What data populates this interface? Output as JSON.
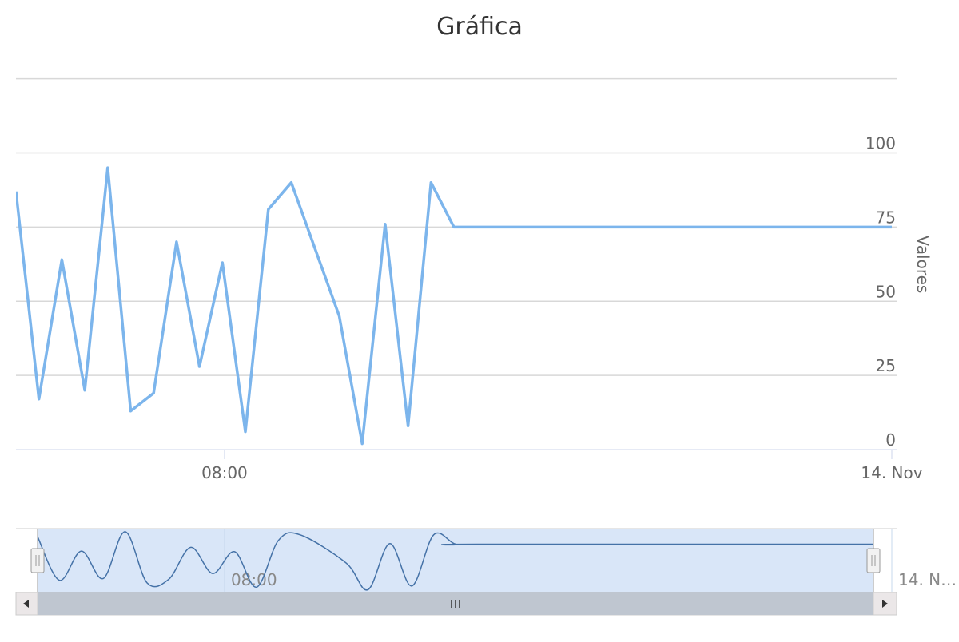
{
  "chart_data": {
    "type": "line",
    "title": "Gráfica",
    "ylabel": "Valores",
    "ylim": [
      0,
      100
    ],
    "yticks": [
      0,
      25,
      50,
      75,
      100
    ],
    "ytick_labels": [
      "0",
      "25",
      "50",
      "75",
      "100"
    ],
    "x_range": [
      "2017-11-13T03:00",
      "2017-11-14T00:00"
    ],
    "xtick_labels": [
      {
        "label": "08:00",
        "x": "2017-11-13T08:00"
      },
      {
        "label": "14. Nov",
        "x": "2017-11-14T00:00"
      }
    ],
    "navigator_tick_labels": [
      {
        "label": "08:00",
        "x": "2017-11-13T08:00"
      },
      {
        "label": "14. N…",
        "x": "2017-11-14T00:00"
      }
    ],
    "grid": true,
    "line_color": "#7cb5ec",
    "series": [
      {
        "x": [
          "2017-11-13T03:00",
          "2017-11-13T03:33",
          "2017-11-13T04:06",
          "2017-11-13T04:39",
          "2017-11-13T05:12",
          "2017-11-13T05:45",
          "2017-11-13T06:18",
          "2017-11-13T06:51",
          "2017-11-13T07:24",
          "2017-11-13T07:57",
          "2017-11-13T08:30",
          "2017-11-13T09:03",
          "2017-11-13T09:36",
          "2017-11-13T10:45",
          "2017-11-13T11:18",
          "2017-11-13T11:51",
          "2017-11-13T12:24",
          "2017-11-13T12:57",
          "2017-11-13T13:30",
          "2017-11-13T14:03",
          "2017-11-14T00:00"
        ],
        "values": [
          87,
          17,
          64,
          20,
          95,
          13,
          19,
          70,
          28,
          63,
          6,
          81,
          90,
          45,
          2,
          76,
          8,
          90,
          75,
          75,
          75
        ]
      }
    ]
  }
}
